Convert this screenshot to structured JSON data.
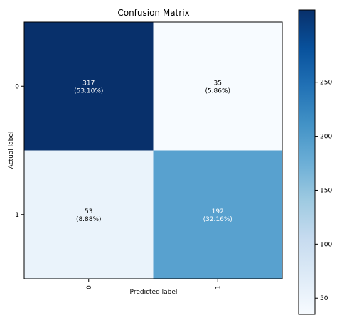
{
  "chart_data": {
    "type": "heatmap",
    "title": "Confusion Matrix",
    "xlabel": "Predicted label",
    "ylabel": "Actual label",
    "x_categories": [
      "0",
      "1"
    ],
    "y_categories": [
      "0",
      "1"
    ],
    "values": [
      [
        317,
        35
      ],
      [
        53,
        192
      ]
    ],
    "cell_labels": [
      [
        "317\n(53.10%)",
        "35\n(5.86%)"
      ],
      [
        "53\n(8.88%)",
        "192\n(32.16%)"
      ]
    ],
    "colormap": "Blues",
    "colorbar": {
      "min": 35,
      "max": 317,
      "ticks": [
        50,
        100,
        150,
        200,
        250
      ]
    },
    "colors": {
      "low": "#f7fbff",
      "high": "#08306b"
    },
    "grid": false
  }
}
